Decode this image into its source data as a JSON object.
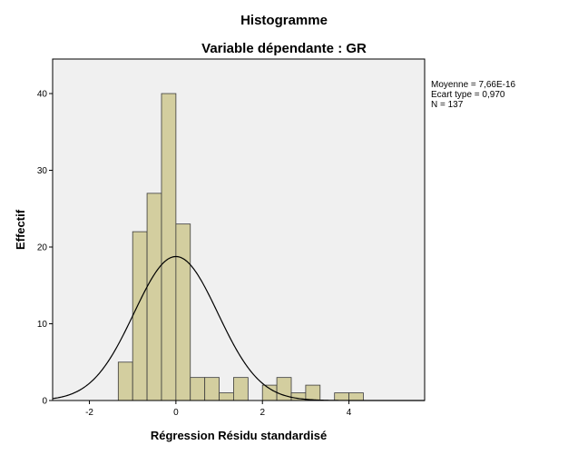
{
  "chart_data": {
    "type": "bar",
    "title": "Histogramme",
    "subtitle": "Variable dépendante : GR",
    "xlabel": "Régression Résidu standardisé",
    "ylabel": "Effectif",
    "xlim": [
      -2.85,
      5.75
    ],
    "ylim": [
      0,
      44.5
    ],
    "xticks": [
      -2,
      0,
      2,
      4
    ],
    "yticks": [
      0,
      10,
      20,
      30,
      40
    ],
    "bin_width": 0.333,
    "bins": [
      {
        "x0": -1.333,
        "x1": -1.0,
        "count": 5
      },
      {
        "x0": -1.0,
        "x1": -0.667,
        "count": 22
      },
      {
        "x0": -0.667,
        "x1": -0.333,
        "count": 27
      },
      {
        "x0": -0.333,
        "x1": 0.0,
        "count": 40
      },
      {
        "x0": 0.0,
        "x1": 0.333,
        "count": 23
      },
      {
        "x0": 0.333,
        "x1": 0.667,
        "count": 3
      },
      {
        "x0": 0.667,
        "x1": 1.0,
        "count": 3
      },
      {
        "x0": 1.0,
        "x1": 1.333,
        "count": 1
      },
      {
        "x0": 1.333,
        "x1": 1.667,
        "count": 3
      },
      {
        "x0": 1.667,
        "x1": 2.0,
        "count": 0
      },
      {
        "x0": 2.0,
        "x1": 2.333,
        "count": 2
      },
      {
        "x0": 2.333,
        "x1": 2.667,
        "count": 3
      },
      {
        "x0": 2.667,
        "x1": 3.0,
        "count": 1
      },
      {
        "x0": 3.0,
        "x1": 3.333,
        "count": 2
      },
      {
        "x0": 3.333,
        "x1": 3.667,
        "count": 0
      },
      {
        "x0": 3.667,
        "x1": 4.0,
        "count": 1
      },
      {
        "x0": 4.0,
        "x1": 4.333,
        "count": 1
      }
    ],
    "normal_curve": {
      "mean": 0.0,
      "sd": 0.97,
      "n": 137
    },
    "stats": {
      "mean": "Moyenne = 7,66E-16",
      "sd": "Ecart type = 0,970",
      "n": "N = 137"
    },
    "legend_placement": "right",
    "grid": false,
    "colors": {
      "bar_fill": "#d3ce9f",
      "bar_stroke": "#3c3c3c",
      "plot_background": "#f0f0f0",
      "curve": "#000000"
    }
  }
}
